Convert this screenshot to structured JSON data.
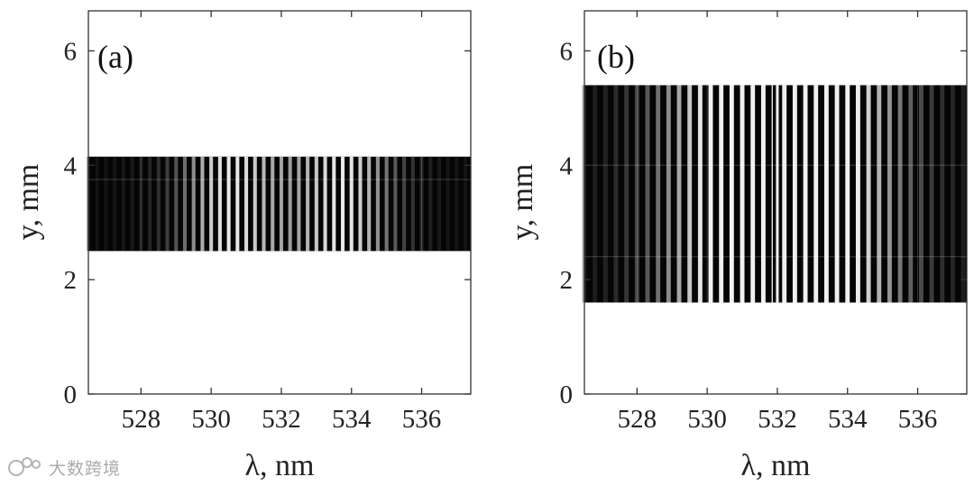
{
  "figure": {
    "background": "#ffffff",
    "frame_color": "#333333"
  },
  "watermark": {
    "text": "大数跨境",
    "icon": "logo-icon"
  },
  "chart_data": [
    {
      "type": "heatmap",
      "panel_label": "(a)",
      "xlabel": "λ, nm",
      "ylabel": "y, mm",
      "xlim": [
        526.5,
        537.4
      ],
      "ylim": [
        0,
        6.7
      ],
      "xticks": [
        528,
        530,
        532,
        534,
        536
      ],
      "yticks": [
        0,
        2,
        4,
        6
      ],
      "image_extent": {
        "x": [
          526.5,
          537.4
        ],
        "y": [
          2.5,
          4.15
        ]
      },
      "grid": true,
      "gridlines_y": [
        3.75
      ],
      "fringe_spacing_nm": 0.25,
      "lobes": [
        {
          "center_nm": 530.5,
          "width_nm": 1.6
        },
        {
          "center_nm": 533.8,
          "width_nm": 1.6
        }
      ],
      "colormap": "gray"
    },
    {
      "type": "heatmap",
      "panel_label": "(b)",
      "xlabel": "λ, nm",
      "ylabel": "y, mm",
      "xlim": [
        526.5,
        537.4
      ],
      "ylim": [
        0,
        6.7
      ],
      "xticks": [
        528,
        530,
        532,
        534,
        536
      ],
      "yticks": [
        0,
        2,
        4,
        6
      ],
      "image_extent": {
        "x": [
          526.5,
          537.4
        ],
        "y": [
          1.6,
          5.4
        ]
      },
      "grid": true,
      "gridlines_y": [
        2.4,
        4.0
      ],
      "fringe_spacing_nm": 0.3,
      "bright_line_nm": 532.0,
      "lobes": [
        {
          "center_nm": 530.4,
          "width_nm": 2.3
        },
        {
          "center_nm": 533.8,
          "width_nm": 2.3
        }
      ],
      "colormap": "gray"
    }
  ]
}
